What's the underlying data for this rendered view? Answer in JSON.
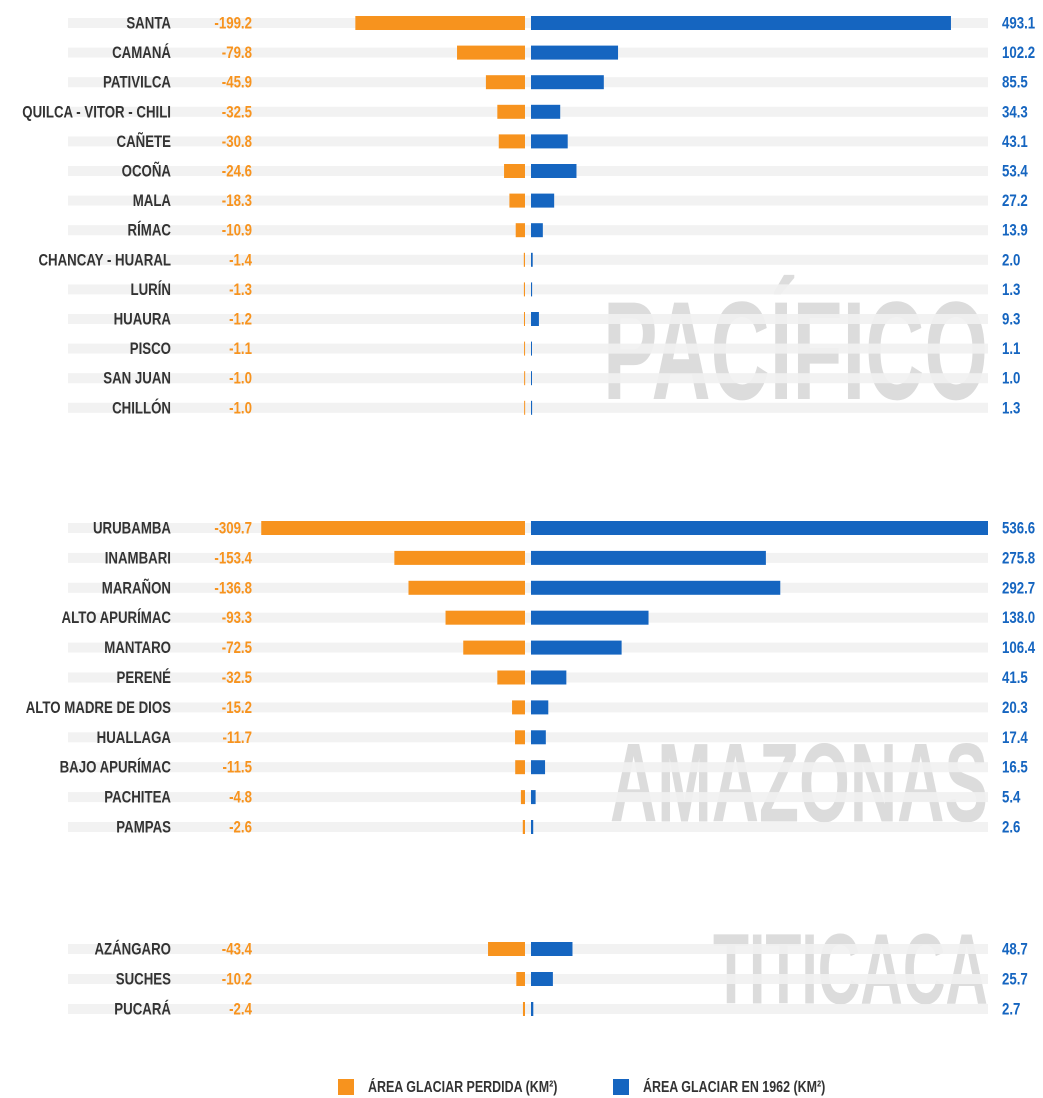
{
  "chart_data": {
    "type": "diverging-bar",
    "groups": [
      "PACÍFICO",
      "AMAZONAS",
      "TITICACA"
    ],
    "categories": [
      [
        "SANTA",
        "CAMANÁ",
        "PATIVILCA",
        "QUILCA - VITOR - CHILI",
        "CAÑETE",
        "OCOÑA",
        "MALA",
        "RÍMAC",
        "CHANCAY - HUARAL",
        "LURÍN",
        "HUAURA",
        "PISCO",
        "SAN JUAN",
        "CHILLÓN"
      ],
      [
        "URUBAMBA",
        "INAMBARI",
        "MARAÑON",
        "ALTO APURÍMAC",
        "MANTARO",
        "PERENÉ",
        "ALTO MADRE DE DIOS",
        "HUALLAGA",
        "BAJO APURÍMAC",
        "PACHITEA",
        "PAMPAS"
      ],
      [
        "AZÁNGARO",
        "SUCHES",
        "PUCARÁ"
      ]
    ],
    "series": [
      {
        "name": "ÁREA GLACIAR PERDIDA (KM²)",
        "color": "#f7931e",
        "values": [
          [
            -199.2,
            -79.8,
            -45.9,
            -32.5,
            -30.8,
            -24.6,
            -18.3,
            -10.9,
            -1.4,
            -1.3,
            -1.2,
            -1.1,
            -1.0,
            -1.0
          ],
          [
            -309.7,
            -153.4,
            -136.8,
            -93.3,
            -72.5,
            -32.5,
            -15.2,
            -11.7,
            -11.5,
            -4.8,
            -2.6
          ],
          [
            -43.4,
            -10.2,
            -2.4
          ]
        ],
        "value_labels": [
          [
            "-199.2",
            "-79.8",
            "-45.9",
            "-32.5",
            "-30.8",
            "-24.6",
            "-18.3",
            "-10.9",
            "-1.4",
            "-1.3",
            "-1.2",
            "-1.1",
            "-1.0",
            "-1.0"
          ],
          [
            "-309.7",
            "-153.4",
            "-136.8",
            "-93.3",
            "-72.5",
            "-32.5",
            "-15.2",
            "-11.7",
            "-11.5",
            "-4.8",
            "-2.6"
          ],
          [
            "-43.4",
            "-10.2",
            "-2.4"
          ]
        ]
      },
      {
        "name": "ÁREA GLACIAR EN 1962 (KM²)",
        "color": "#1565c0",
        "values": [
          [
            493.1,
            102.2,
            85.5,
            34.3,
            43.1,
            53.4,
            27.2,
            13.9,
            2.0,
            1.3,
            9.3,
            1.1,
            1.0,
            1.3
          ],
          [
            536.6,
            275.8,
            292.7,
            138.0,
            106.4,
            41.5,
            20.3,
            17.4,
            16.5,
            5.4,
            2.6
          ],
          [
            48.7,
            25.7,
            2.7
          ]
        ],
        "value_labels": [
          [
            "493.1",
            "102.2",
            "85.5",
            "34.3",
            "43.1",
            "53.4",
            "27.2",
            "13.9",
            "2.0",
            "1.3",
            "9.3",
            "1.1",
            "1.0",
            "1.3"
          ],
          [
            "536.6",
            "275.8",
            "292.7",
            "138.0",
            "106.4",
            "41.5",
            "20.3",
            "17.4",
            "16.5",
            "5.4",
            "2.6"
          ],
          [
            "48.7",
            "25.7",
            "2.7"
          ]
        ]
      }
    ]
  }
}
